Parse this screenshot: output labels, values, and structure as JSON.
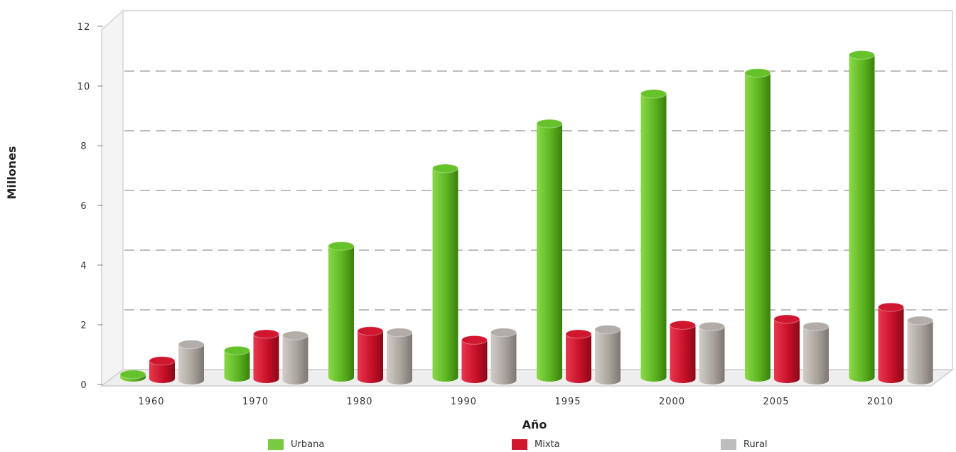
{
  "chart_data": {
    "type": "bar",
    "xlabel": "Año",
    "ylabel": "Millones",
    "ylim": [
      0,
      12
    ],
    "yticks": [
      "0",
      "2",
      "4",
      "6",
      "8",
      "10",
      "12"
    ],
    "grid": true,
    "legend_position": "bottom",
    "categories": [
      "1960",
      "1970",
      "1980",
      "1990",
      "1995",
      "2000",
      "2005",
      "2010"
    ],
    "series": [
      {
        "name": "Urbana",
        "color": "#66c22a",
        "values": [
          0.1,
          0.9,
          4.4,
          7.0,
          8.5,
          9.5,
          10.2,
          10.8
        ]
      },
      {
        "name": "Mixta",
        "color": "#d0172f",
        "values": [
          0.6,
          1.5,
          1.6,
          1.3,
          1.5,
          1.8,
          2.0,
          2.4
        ]
      },
      {
        "name": "Rural",
        "color": "#b3ada8",
        "values": [
          1.2,
          1.5,
          1.6,
          1.6,
          1.7,
          1.8,
          1.8,
          2.0
        ]
      }
    ]
  }
}
